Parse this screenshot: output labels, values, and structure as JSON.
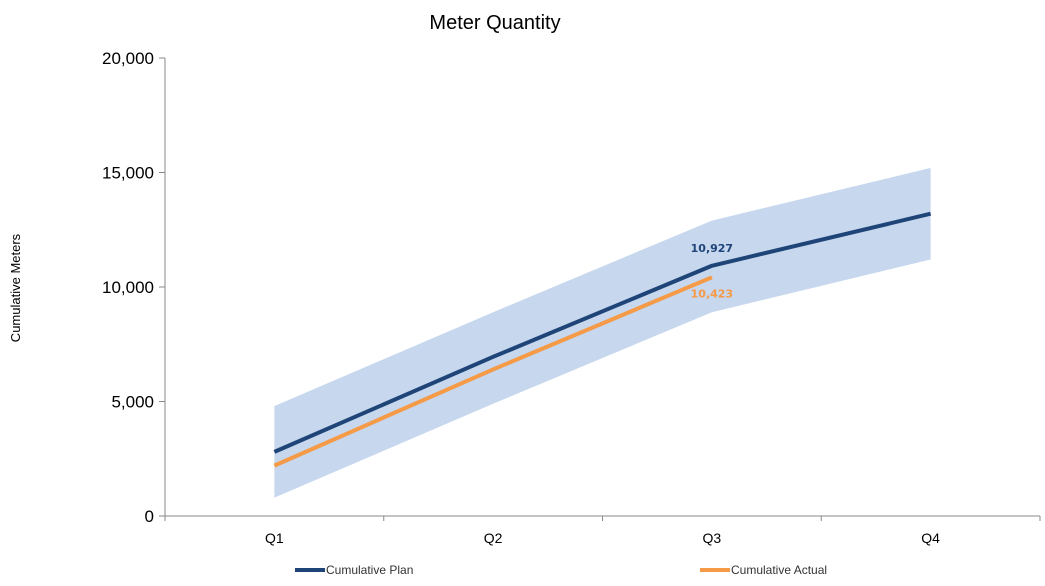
{
  "chart_data": {
    "type": "line",
    "title": "Meter Quantity",
    "xlabel": "",
    "ylabel": "Cumulative Meters",
    "categories": [
      "Q1",
      "Q2",
      "Q3",
      "Q4"
    ],
    "ylim": [
      0,
      20000
    ],
    "yticks": [
      0,
      5000,
      10000,
      15000,
      20000
    ],
    "ytick_labels": [
      "0",
      "5,000",
      "10,000",
      "15,000",
      "20,000"
    ],
    "band": {
      "upper": [
        4800,
        8900,
        12900,
        15200
      ],
      "lower": [
        800,
        4900,
        8900,
        11200
      ],
      "color": "#c6d7ee"
    },
    "series": [
      {
        "name": "Cumulative Plan",
        "values": [
          2800,
          6950,
          10927,
          13200
        ],
        "color": "#1f4477"
      },
      {
        "name": "Cumulative Actual",
        "values": [
          2200,
          6400,
          10423,
          null
        ],
        "color": "#f59a46"
      }
    ],
    "data_labels": [
      {
        "series": 0,
        "index": 2,
        "text": "10,927"
      },
      {
        "series": 1,
        "index": 2,
        "text": "10,423"
      }
    ],
    "grid": false,
    "legend": "bottom"
  }
}
